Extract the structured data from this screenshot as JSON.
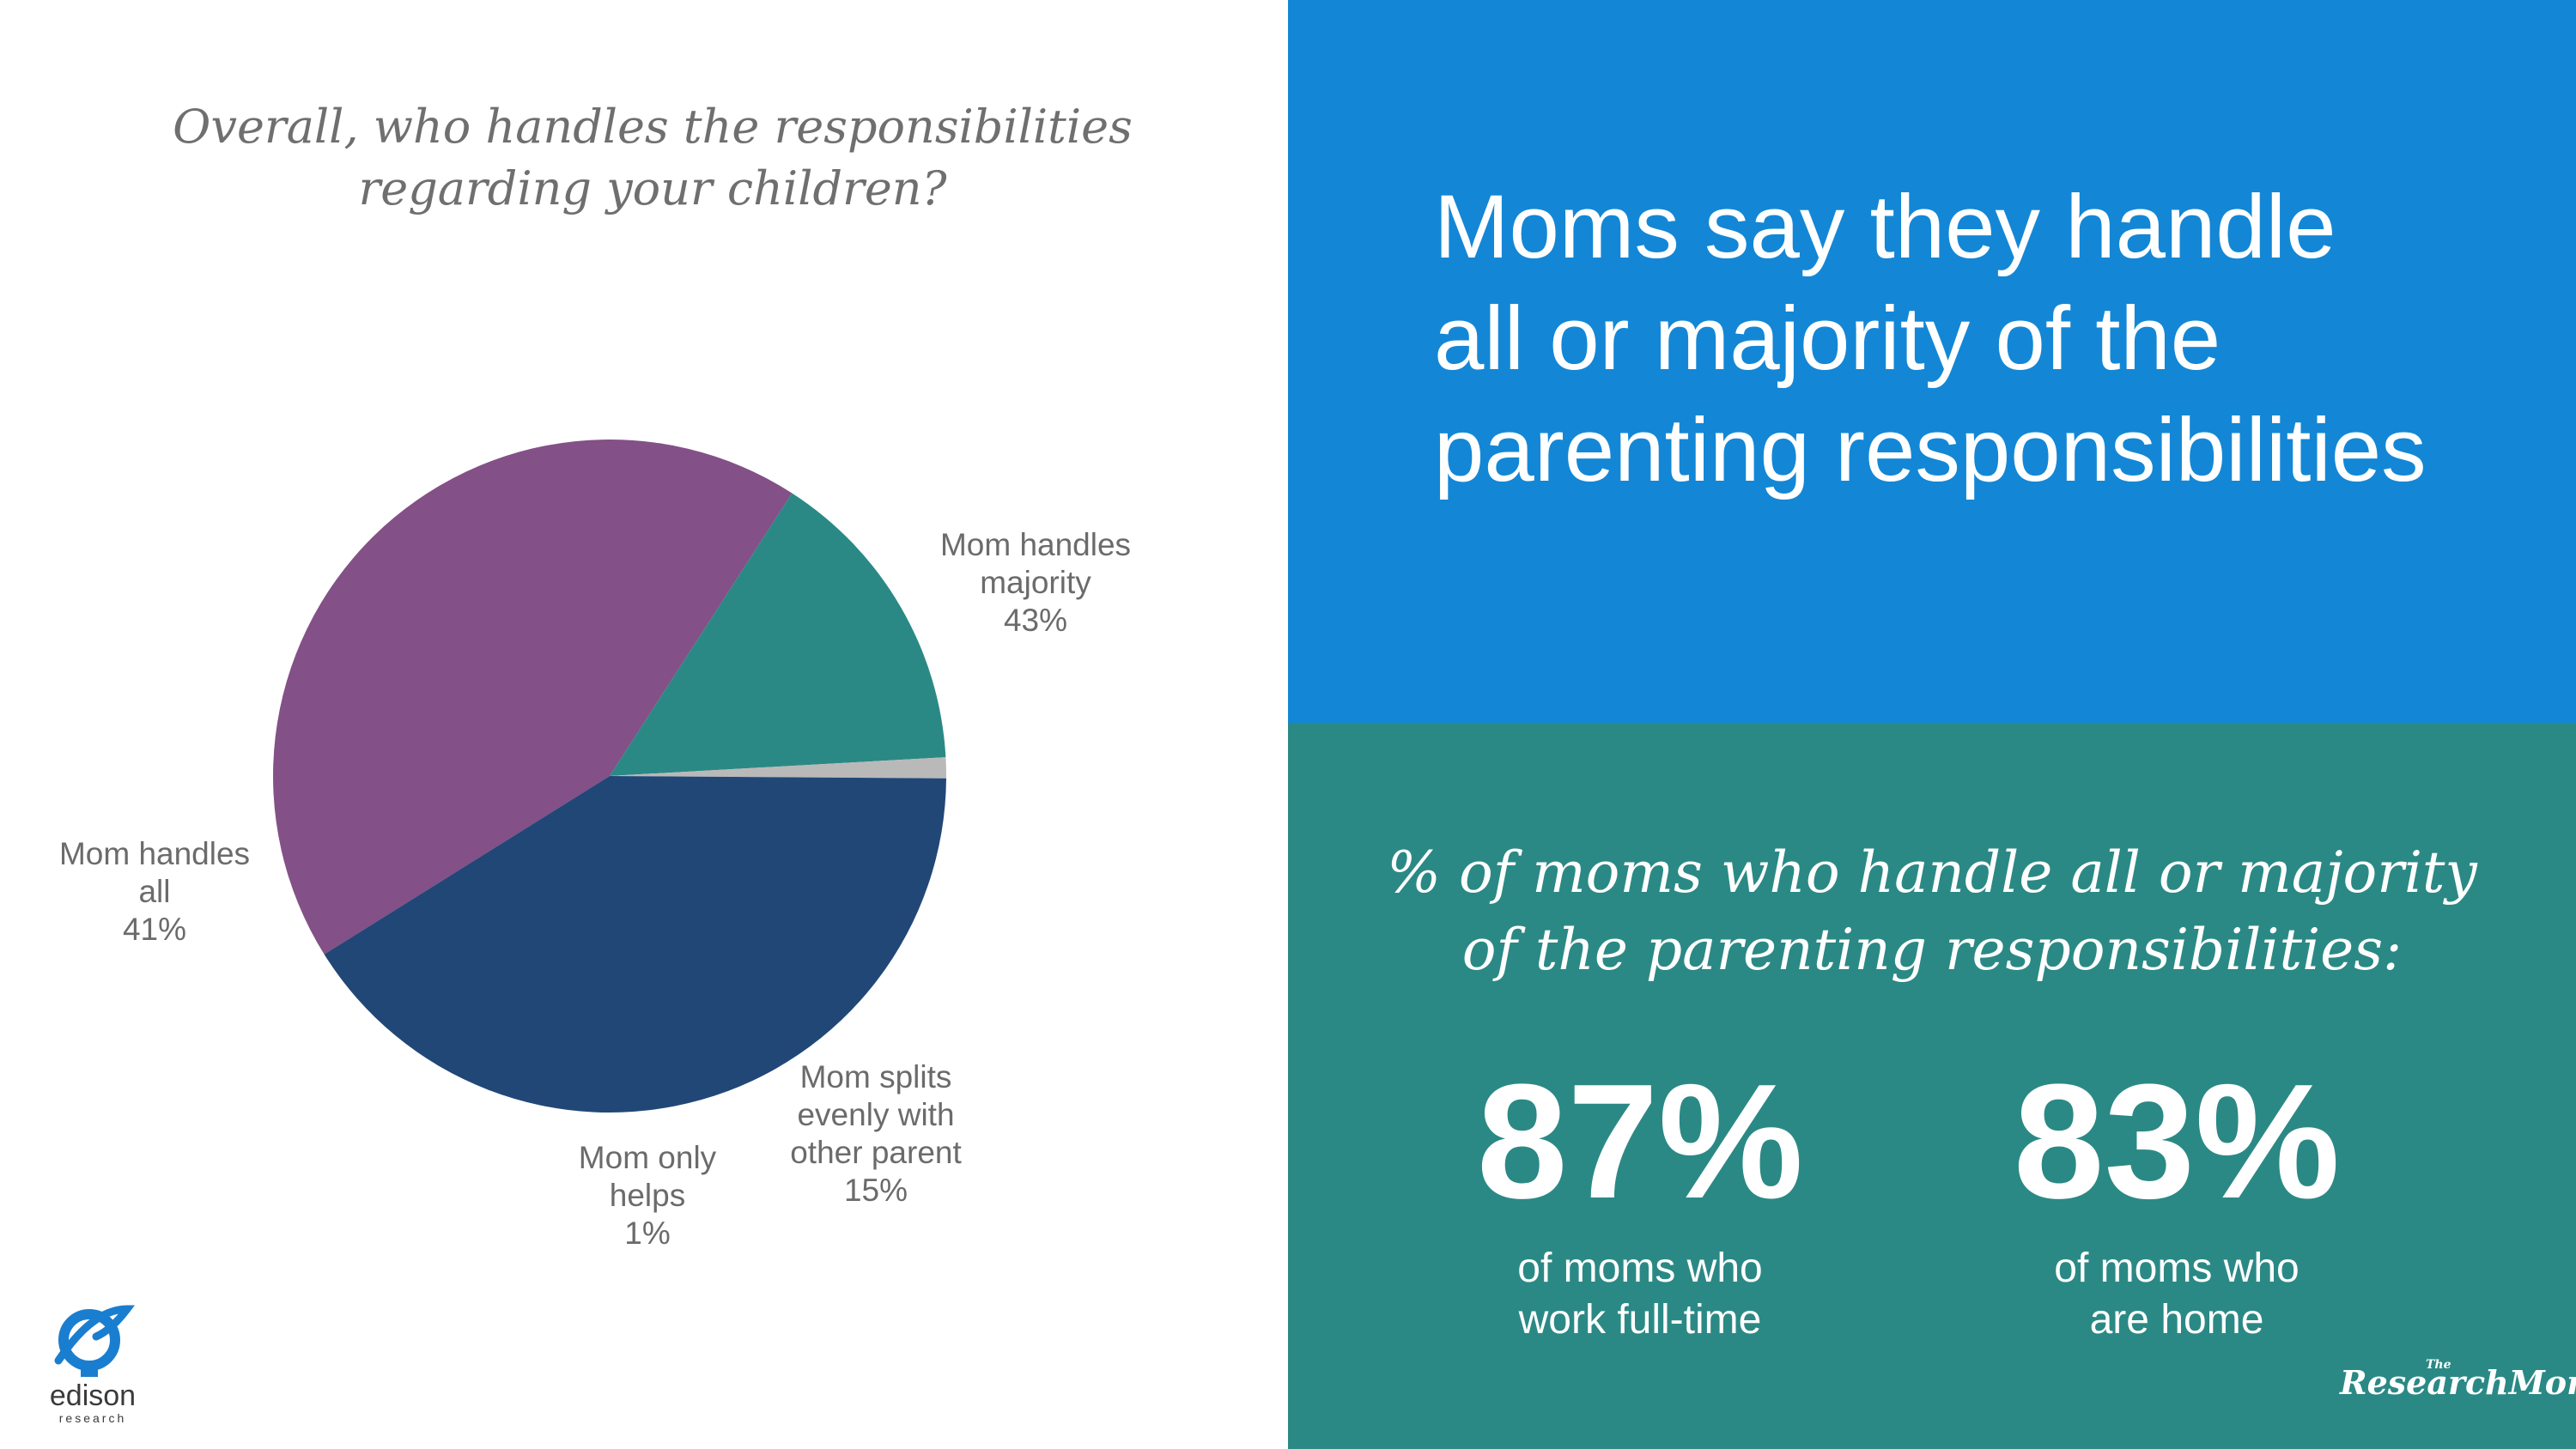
{
  "chart_title": {
    "line1": "Overall, who handles the responsibilities",
    "line2": "regarding your children?"
  },
  "chart_data": {
    "type": "pie",
    "slices": [
      {
        "label_lines": [
          "Mom handles",
          "majority",
          "43%"
        ],
        "value": 43,
        "color": "#835087"
      },
      {
        "label_lines": [
          "Mom splits",
          "evenly with",
          "other parent",
          "15%"
        ],
        "value": 15,
        "color": "#2b8985"
      },
      {
        "label_lines": [
          "Mom only",
          "helps",
          "1%"
        ],
        "value": 1,
        "color": "#b9b9b9"
      },
      {
        "label_lines": [
          "Mom handles",
          "all",
          "41%"
        ],
        "value": 41,
        "color": "#214777"
      }
    ]
  },
  "headline": {
    "line1": "Moms say they handle",
    "line2": "all or majority of the",
    "line3": "parenting responsibilities"
  },
  "stats_heading": {
    "line1": "% of moms who handle all or majority",
    "line2": "of the parenting responsibilities:"
  },
  "stats": [
    {
      "value": "87%",
      "line1": "of moms who",
      "line2": "work full-time"
    },
    {
      "value": "83%",
      "line1": "of moms who",
      "line2": "are home"
    }
  ],
  "logos": {
    "edison": {
      "word": "edison",
      "sub": "research"
    },
    "research_moms": {
      "the": "The",
      "word": "ResearchMoms"
    }
  },
  "colors": {
    "blue_panel": "#1387d6",
    "teal_panel": "#2b8985",
    "edison_blue": "#1a7ed0"
  }
}
